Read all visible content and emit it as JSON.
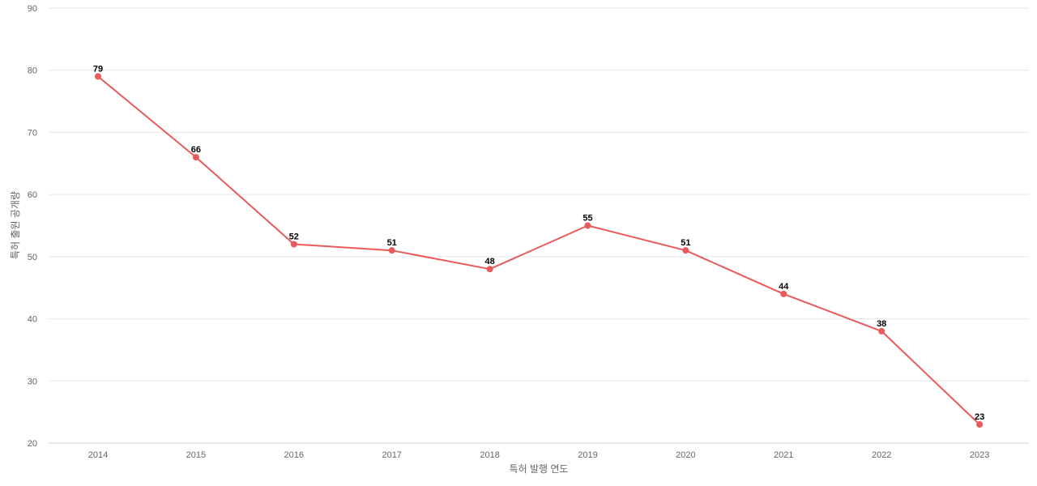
{
  "chart_data": {
    "type": "line",
    "title": "",
    "xlabel": "특허 발행 연도",
    "ylabel": "특허 출원 공개량",
    "ylim": [
      20,
      90
    ],
    "yticks": [
      20,
      30,
      40,
      50,
      60,
      70,
      80,
      90
    ],
    "categories": [
      "2014",
      "2015",
      "2016",
      "2017",
      "2018",
      "2019",
      "2020",
      "2021",
      "2022",
      "2023"
    ],
    "series": [
      {
        "values": [
          79,
          66,
          52,
          51,
          48,
          55,
          51,
          44,
          38,
          23
        ],
        "color": "#eb5a5a"
      }
    ],
    "grid": true,
    "legend": "none",
    "data_labels": true
  }
}
